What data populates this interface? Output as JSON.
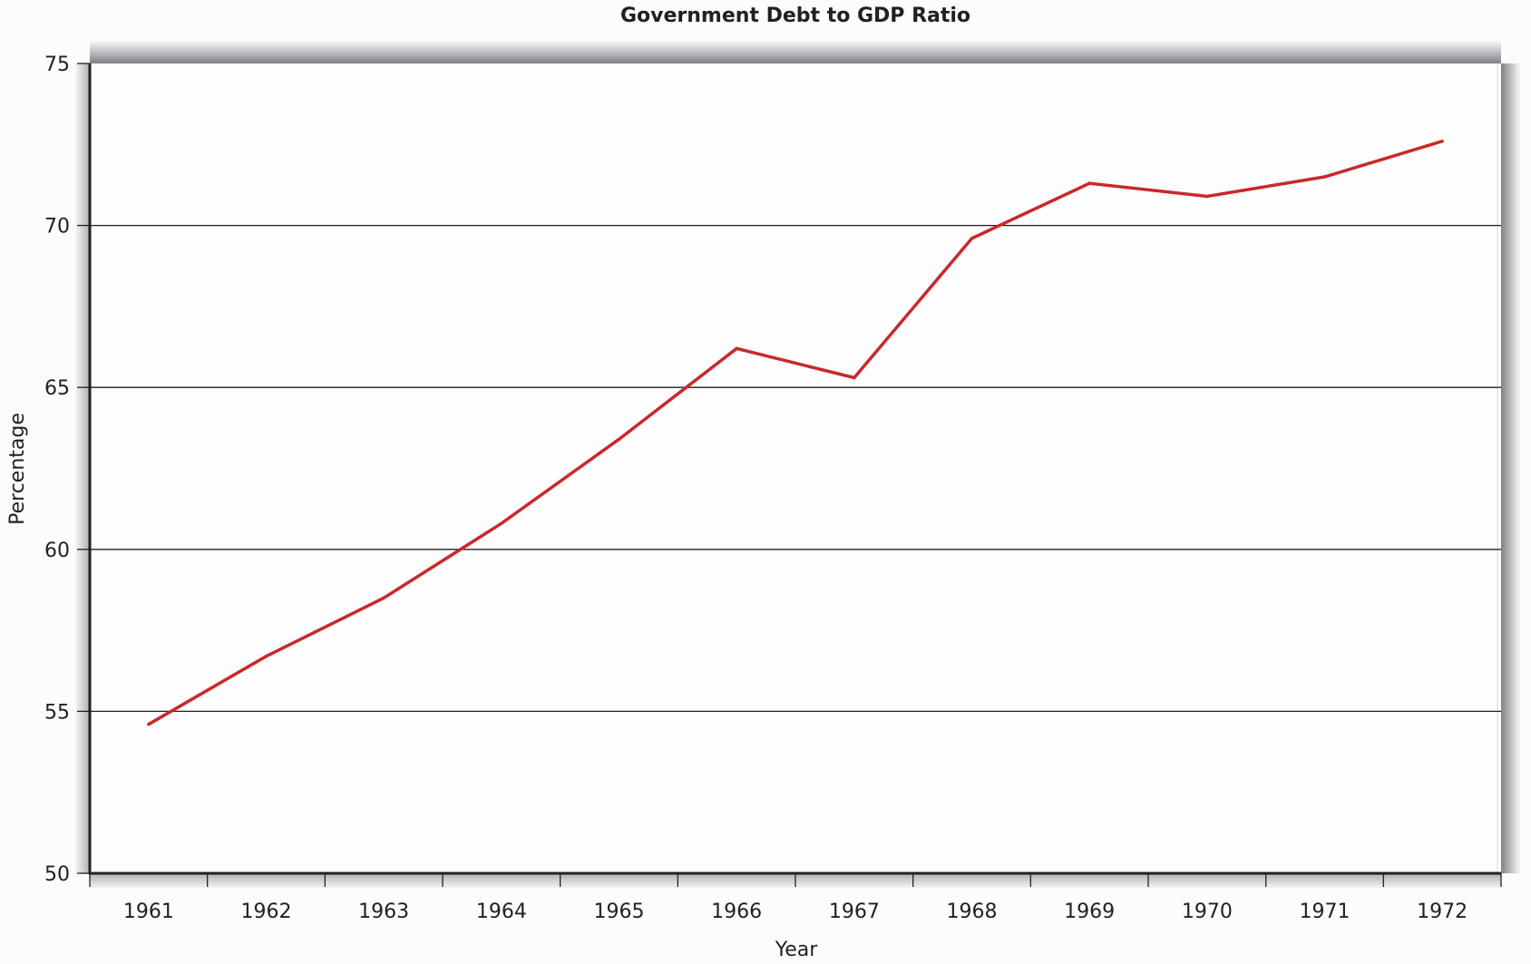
{
  "chart_data": {
    "type": "line",
    "title": "Government Debt to GDP Ratio",
    "xlabel": "Year",
    "ylabel": "Percentage",
    "categories": [
      "1961",
      "1962",
      "1963",
      "1964",
      "1965",
      "1966",
      "1967",
      "1968",
      "1969",
      "1970",
      "1971",
      "1972"
    ],
    "series": [
      {
        "name": "Government Debt to GDP Ratio",
        "color": "#c9282a",
        "values": [
          54.6,
          56.7,
          58.5,
          60.8,
          63.4,
          66.2,
          65.3,
          69.6,
          71.3,
          70.9,
          71.5,
          72.6
        ]
      }
    ],
    "ylim": [
      50,
      75
    ],
    "yticks": [
      50,
      55,
      60,
      65,
      70,
      75
    ],
    "ytick_labels": [
      "50",
      "55",
      "60",
      "65",
      "70",
      "75"
    ],
    "grid": true,
    "legend": "none"
  }
}
